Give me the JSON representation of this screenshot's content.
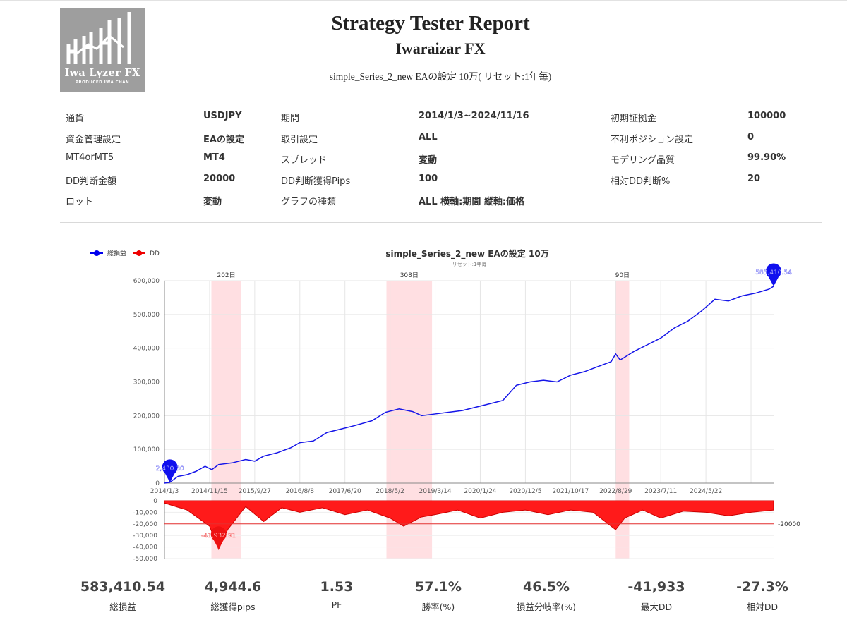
{
  "report": {
    "title": "Strategy Tester Report",
    "subtitle": "Iwaraizar FX",
    "caption": "simple_Series_2_new EAの設定 10万( リセット:1年毎)"
  },
  "logo": {
    "title": "Iwa Lyzer FX",
    "subtitle": "PRODUCED  IWA CHAN"
  },
  "settings": [
    [
      {
        "label": "通貨",
        "value": "USDJPY"
      },
      {
        "label": "期間",
        "value": "2014/1/3~2024/11/16"
      },
      {
        "label": "初期証拠金",
        "value": "100000"
      }
    ],
    [
      {
        "label": "資金管理設定",
        "value": "EAの設定"
      },
      {
        "label": "取引設定",
        "value": "ALL"
      },
      {
        "label": "不利ポジション設定",
        "value": "0"
      }
    ],
    [
      {
        "label": "MT4orMT5",
        "value": "MT4"
      },
      {
        "label": "スプレッド",
        "value": "変動"
      },
      {
        "label": "モデリング品質",
        "value": "99.90%"
      }
    ],
    [
      {
        "label": "DD判断金額",
        "value": "20000"
      },
      {
        "label": "DD判断獲得Pips",
        "value": "100"
      },
      {
        "label": "相対DD判断%",
        "value": "20"
      }
    ],
    [
      {
        "label": "ロット",
        "value": "変動"
      },
      {
        "label": "グラフの種類",
        "value": "ALL 横軸:期間 縦軸:価格"
      }
    ]
  ],
  "chart_data": {
    "type": "line",
    "title": "simple_Series_2_new EAの設定 10万",
    "subtitle": "リセット:1年毎",
    "legend": [
      {
        "name": "総損益",
        "color": "#0000ee"
      },
      {
        "name": "DD",
        "color": "#ee0000"
      }
    ],
    "x_ticks": [
      "2014/1/3",
      "2014/11/15",
      "2015/9/27",
      "2016/8/8",
      "2017/6/20",
      "2018/5/2",
      "2019/3/14",
      "2020/1/24",
      "2020/12/5",
      "2021/10/17",
      "2022/8/29",
      "2023/7/11",
      "2024/5/22"
    ],
    "x_range": [
      "2014/1/3",
      "2024/11/16"
    ],
    "profit": {
      "ylim": [
        0,
        600000
      ],
      "y_ticks": [
        "600,000",
        "500,000",
        "400,000",
        "300,000",
        "200,000",
        "100,000",
        "0"
      ],
      "points": [
        [
          0.0,
          0
        ],
        [
          0.12,
          2430
        ],
        [
          0.3,
          20000
        ],
        [
          0.5,
          25000
        ],
        [
          0.7,
          35000
        ],
        [
          0.9,
          50000
        ],
        [
          1.05,
          40000
        ],
        [
          1.2,
          55000
        ],
        [
          1.5,
          60000
        ],
        [
          1.8,
          70000
        ],
        [
          2.0,
          65000
        ],
        [
          2.2,
          80000
        ],
        [
          2.5,
          90000
        ],
        [
          2.8,
          105000
        ],
        [
          3.0,
          120000
        ],
        [
          3.3,
          125000
        ],
        [
          3.6,
          150000
        ],
        [
          3.9,
          160000
        ],
        [
          4.2,
          170000
        ],
        [
          4.6,
          185000
        ],
        [
          4.9,
          210000
        ],
        [
          5.2,
          220000
        ],
        [
          5.5,
          212000
        ],
        [
          5.7,
          200000
        ],
        [
          6.0,
          205000
        ],
        [
          6.3,
          210000
        ],
        [
          6.6,
          215000
        ],
        [
          6.9,
          225000
        ],
        [
          7.2,
          235000
        ],
        [
          7.5,
          245000
        ],
        [
          7.8,
          290000
        ],
        [
          8.1,
          300000
        ],
        [
          8.4,
          305000
        ],
        [
          8.7,
          300000
        ],
        [
          9.0,
          320000
        ],
        [
          9.3,
          330000
        ],
        [
          9.6,
          345000
        ],
        [
          9.9,
          360000
        ],
        [
          10.0,
          383000
        ],
        [
          10.1,
          365000
        ],
        [
          10.4,
          390000
        ],
        [
          10.7,
          410000
        ],
        [
          11.0,
          430000
        ],
        [
          11.3,
          460000
        ],
        [
          11.6,
          480000
        ],
        [
          11.9,
          510000
        ],
        [
          12.2,
          545000
        ],
        [
          12.5,
          540000
        ],
        [
          12.8,
          555000
        ],
        [
          13.1,
          563000
        ],
        [
          13.4,
          575000
        ],
        [
          13.5,
          583410.54
        ]
      ]
    },
    "drawdown": {
      "ylim": [
        -50000,
        0
      ],
      "y_ticks": [
        "0",
        "-10,000",
        "-20,000",
        "-30,000",
        "-40,000",
        "-50,000"
      ],
      "threshold": -20000,
      "threshold_label": "-20000",
      "points": [
        [
          0.0,
          -2000
        ],
        [
          0.5,
          -8000
        ],
        [
          1.0,
          -22000
        ],
        [
          1.2,
          -41932.91
        ],
        [
          1.4,
          -25000
        ],
        [
          1.8,
          -5000
        ],
        [
          2.2,
          -18000
        ],
        [
          2.6,
          -6000
        ],
        [
          3.0,
          -10000
        ],
        [
          3.5,
          -6000
        ],
        [
          4.0,
          -12000
        ],
        [
          4.5,
          -8000
        ],
        [
          5.0,
          -15000
        ],
        [
          5.3,
          -22000
        ],
        [
          5.7,
          -14000
        ],
        [
          6.0,
          -12000
        ],
        [
          6.5,
          -8000
        ],
        [
          7.0,
          -15000
        ],
        [
          7.5,
          -10000
        ],
        [
          8.0,
          -8000
        ],
        [
          8.5,
          -12000
        ],
        [
          9.0,
          -8000
        ],
        [
          9.5,
          -10000
        ],
        [
          10.0,
          -25000
        ],
        [
          10.2,
          -15000
        ],
        [
          10.6,
          -8000
        ],
        [
          11.0,
          -15000
        ],
        [
          11.5,
          -9000
        ],
        [
          12.0,
          -10000
        ],
        [
          12.5,
          -13000
        ],
        [
          13.0,
          -10000
        ],
        [
          13.5,
          -8000
        ]
      ]
    },
    "highlight_bands": [
      {
        "label": "202日",
        "from": 1.04,
        "to": 1.7
      },
      {
        "label": "308日",
        "from": 4.92,
        "to": 5.93
      },
      {
        "label": "90日",
        "from": 10.0,
        "to": 10.3
      }
    ],
    "markers": [
      {
        "series": "profit",
        "label": "2,430.30",
        "x": 0.12,
        "y": 2430.3
      },
      {
        "series": "profit",
        "label": "583,410.54",
        "x": 13.5,
        "y": 583410.54
      },
      {
        "series": "drawdown",
        "label": "-41,932.91",
        "x": 1.2,
        "y": -41932.91
      }
    ]
  },
  "stats": [
    {
      "value": "583,410.54",
      "label": "総損益"
    },
    {
      "value": "4,944.6",
      "label": "総獲得pips"
    },
    {
      "value": "1.53",
      "label": "PF"
    },
    {
      "value": "57.1%",
      "label": "勝率(%)"
    },
    {
      "value": "46.5%",
      "label": "損益分岐率(%)"
    },
    {
      "value": "-41,933",
      "label": "最大DD"
    },
    {
      "value": "-27.3%",
      "label": "相対DD"
    }
  ]
}
